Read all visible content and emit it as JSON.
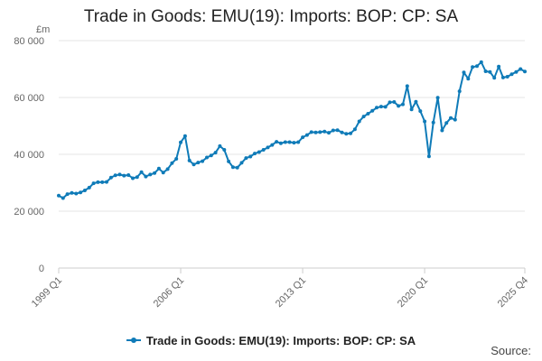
{
  "page": {
    "title": "Trade in Goods: EMU(19): Imports: BOP: CP: SA",
    "source_label": "Source:"
  },
  "colors": {
    "series": "#0f7bb8",
    "gridline": "#e6e6e6",
    "axis_text": "#666666"
  },
  "chart_data": {
    "type": "line",
    "title": "Trade in Goods: EMU(19): Imports: BOP: CP: SA",
    "ylabel": "£m",
    "ylim": [
      0,
      80000
    ],
    "yticks": [
      0,
      20000,
      40000,
      60000,
      80000
    ],
    "ytick_labels": [
      "0",
      "20 000",
      "40 000",
      "60 000",
      "80 000"
    ],
    "xtick_labels": [
      "1999 Q1",
      "2006 Q1",
      "2013 Q1",
      "2020 Q1",
      "2025 Q4"
    ],
    "xtick_index": [
      0,
      28,
      56,
      84,
      107
    ],
    "grid": true,
    "legend_position": "bottom",
    "series": [
      {
        "name": "Trade in Goods: EMU(19): Imports: BOP: CP: SA",
        "x_start": "1999 Q1",
        "frequency": "quarterly",
        "values": [
          25500,
          24600,
          26000,
          26400,
          26200,
          26600,
          27300,
          28300,
          29800,
          30200,
          30200,
          30300,
          31800,
          32600,
          32900,
          32500,
          32700,
          31600,
          32000,
          33700,
          32200,
          32900,
          33400,
          35000,
          33600,
          34800,
          36900,
          38400,
          44200,
          46400,
          37800,
          36400,
          37100,
          37600,
          38900,
          39600,
          40600,
          42900,
          41600,
          37500,
          35500,
          35300,
          37000,
          38700,
          39200,
          40300,
          40800,
          41600,
          42400,
          43300,
          44400,
          43900,
          44300,
          44300,
          44100,
          44300,
          46000,
          46800,
          47800,
          47700,
          47800,
          48000,
          47600,
          48400,
          48500,
          47700,
          47200,
          47400,
          48800,
          51600,
          53300,
          54300,
          55300,
          56400,
          56800,
          56700,
          58300,
          58400,
          57000,
          57600,
          64000,
          55800,
          58500,
          55200,
          51600,
          39300,
          51200,
          59900,
          48400,
          51000,
          52800,
          52200,
          62200,
          68800,
          66600,
          70700,
          71000,
          72400,
          69200,
          69000,
          66900,
          70900,
          67000,
          67300,
          68200,
          69000,
          70000,
          69100
        ]
      }
    ]
  }
}
